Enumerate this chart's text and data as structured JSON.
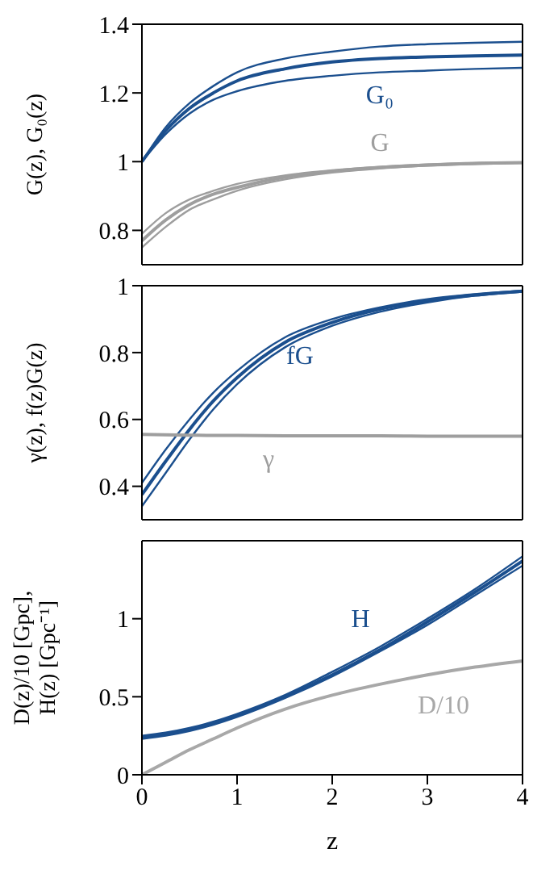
{
  "chart_data": [
    {
      "type": "line",
      "ylabel": "G(z),  G₀(z)",
      "x": [
        0,
        0.25,
        0.5,
        0.75,
        1,
        1.5,
        2,
        2.5,
        3,
        3.5,
        4
      ],
      "xlim": [
        0,
        4
      ],
      "xticks": [
        0,
        1,
        2,
        3,
        4
      ],
      "ylim": [
        0.7,
        1.4
      ],
      "yticks": [
        0.8,
        1,
        1.2,
        1.4
      ],
      "tick_labels": "y",
      "grid": false,
      "legend": false,
      "marker": "none",
      "line_style": "solid",
      "series": [
        {
          "color": "#1b4f8e",
          "values": [
            1,
            1.1,
            1.17,
            1.22,
            1.26,
            1.3,
            1.32,
            1.335,
            1.342,
            1.346,
            1.349
          ]
        },
        {
          "name": "G₀",
          "color": "#1b4f8e",
          "values": [
            1,
            1.09,
            1.155,
            1.2,
            1.235,
            1.27,
            1.29,
            1.3,
            1.305,
            1.308,
            1.31
          ]
        },
        {
          "color": "#1b4f8e",
          "values": [
            1,
            1.08,
            1.14,
            1.18,
            1.205,
            1.235,
            1.25,
            1.26,
            1.265,
            1.27,
            1.273
          ]
        },
        {
          "color": "#9e9e9e",
          "values": [
            0.79,
            0.85,
            0.89,
            0.915,
            0.935,
            0.96,
            0.975,
            0.985,
            0.992,
            0.996,
            0.998
          ]
        },
        {
          "name": "G",
          "color": "#9e9e9e",
          "values": [
            0.77,
            0.83,
            0.875,
            0.905,
            0.925,
            0.955,
            0.972,
            0.983,
            0.99,
            0.995,
            0.997
          ]
        },
        {
          "color": "#9e9e9e",
          "values": [
            0.75,
            0.81,
            0.86,
            0.89,
            0.915,
            0.948,
            0.968,
            0.98,
            0.988,
            0.993,
            0.996
          ]
        }
      ]
    },
    {
      "type": "line",
      "ylabel": "γ(z),  f(z)G(z)",
      "x": [
        0,
        0.25,
        0.5,
        0.75,
        1,
        1.5,
        2,
        2.5,
        3,
        3.5,
        4
      ],
      "xlim": [
        0,
        4
      ],
      "xticks": [
        0,
        1,
        2,
        3,
        4
      ],
      "ylim": [
        0.3,
        1
      ],
      "yticks": [
        0.4,
        0.6,
        0.8,
        1
      ],
      "tick_labels": "y",
      "grid": false,
      "legend": false,
      "marker": "none",
      "line_style": "solid",
      "series": [
        {
          "color": "#1b4f8e",
          "values": [
            0.41,
            0.51,
            0.6,
            0.68,
            0.745,
            0.845,
            0.9,
            0.935,
            0.96,
            0.975,
            0.985
          ]
        },
        {
          "name": "fG",
          "color": "#1b4f8e",
          "values": [
            0.375,
            0.475,
            0.57,
            0.655,
            0.725,
            0.83,
            0.89,
            0.93,
            0.955,
            0.972,
            0.984
          ]
        },
        {
          "color": "#1b4f8e",
          "values": [
            0.34,
            0.44,
            0.54,
            0.63,
            0.705,
            0.815,
            0.88,
            0.922,
            0.95,
            0.97,
            0.982
          ]
        },
        {
          "name": "γ",
          "color": "#9e9e9e",
          "values": [
            0.555,
            0.554,
            0.553,
            0.552,
            0.552,
            0.551,
            0.551,
            0.551,
            0.55,
            0.55,
            0.55
          ]
        }
      ]
    },
    {
      "type": "line",
      "xlabel": "z",
      "ylabel": "D(z)/10 [Gpc],\nH(z) [Gpc⁻¹]",
      "x": [
        0,
        0.25,
        0.5,
        0.75,
        1,
        1.5,
        2,
        2.5,
        3,
        3.5,
        4
      ],
      "xlim": [
        0,
        4
      ],
      "xticks": [
        0,
        1,
        2,
        3,
        4
      ],
      "ylim": [
        0,
        1.5
      ],
      "yticks": [
        0,
        0.5,
        1
      ],
      "grid": false,
      "legend": false,
      "marker": "none",
      "line_style": "solid",
      "series": [
        {
          "color": "#1b4f8e",
          "values": [
            0.25,
            0.27,
            0.3,
            0.34,
            0.39,
            0.51,
            0.66,
            0.82,
            1.0,
            1.19,
            1.4
          ]
        },
        {
          "name": "H",
          "color": "#1b4f8e",
          "values": [
            0.24,
            0.26,
            0.29,
            0.33,
            0.38,
            0.5,
            0.64,
            0.8,
            0.98,
            1.17,
            1.37
          ]
        },
        {
          "color": "#1b4f8e",
          "values": [
            0.23,
            0.25,
            0.28,
            0.32,
            0.37,
            0.49,
            0.63,
            0.79,
            0.96,
            1.15,
            1.34
          ]
        },
        {
          "name": "D/10",
          "color": "#a8a8a8",
          "values": [
            0,
            0.08,
            0.16,
            0.23,
            0.3,
            0.42,
            0.51,
            0.58,
            0.64,
            0.69,
            0.73
          ]
        }
      ]
    }
  ]
}
